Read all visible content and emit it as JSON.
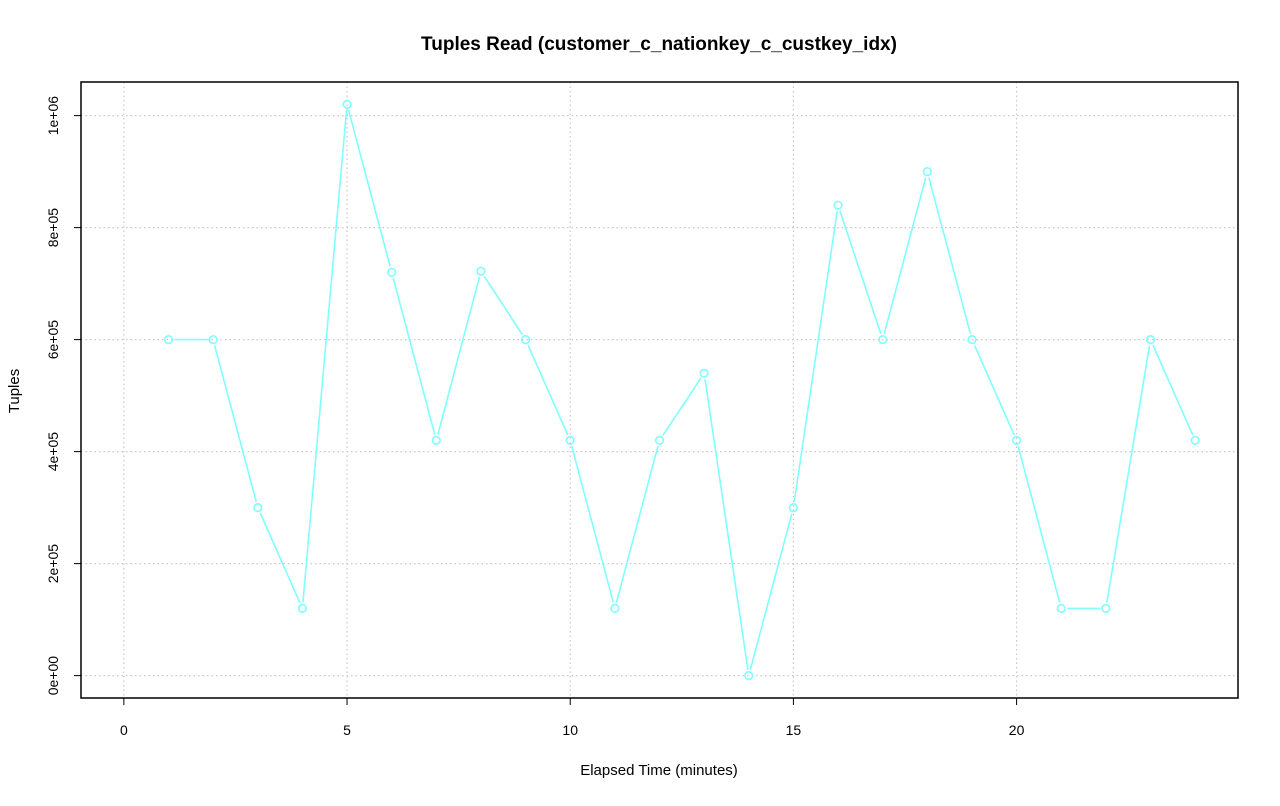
{
  "chart_data": {
    "type": "line",
    "title": "Tuples Read (customer_c_nationkey_c_custkey_idx)",
    "xlabel": "Elapsed Time (minutes)",
    "ylabel": "Tuples",
    "xlim": [
      -0.96,
      24.96
    ],
    "ylim": [
      -40000,
      1060000
    ],
    "x_ticks": [
      0,
      5,
      10,
      15,
      20
    ],
    "x_tick_labels": [
      "0",
      "5",
      "10",
      "15",
      "20"
    ],
    "y_ticks": [
      0,
      200000,
      400000,
      600000,
      800000,
      1000000
    ],
    "y_tick_labels": [
      "0e+00",
      "2e+05",
      "4e+05",
      "6e+05",
      "8e+05",
      "1e+06"
    ],
    "grid": true,
    "legend": "none",
    "series": [
      {
        "color": "#7fffff",
        "marker": "open-circle",
        "x": [
          1,
          2,
          3,
          4,
          5,
          6,
          7,
          8,
          9,
          10,
          11,
          12,
          13,
          14,
          15,
          16,
          17,
          18,
          19,
          20,
          21,
          22,
          23,
          24
        ],
        "values": [
          600000,
          600000,
          300000,
          120000,
          1020000,
          720000,
          420000,
          722000,
          600000,
          420000,
          120000,
          420000,
          540000,
          0,
          300000,
          840000,
          600000,
          900000,
          600000,
          420000,
          120000,
          120000,
          600000,
          420000
        ]
      }
    ]
  }
}
